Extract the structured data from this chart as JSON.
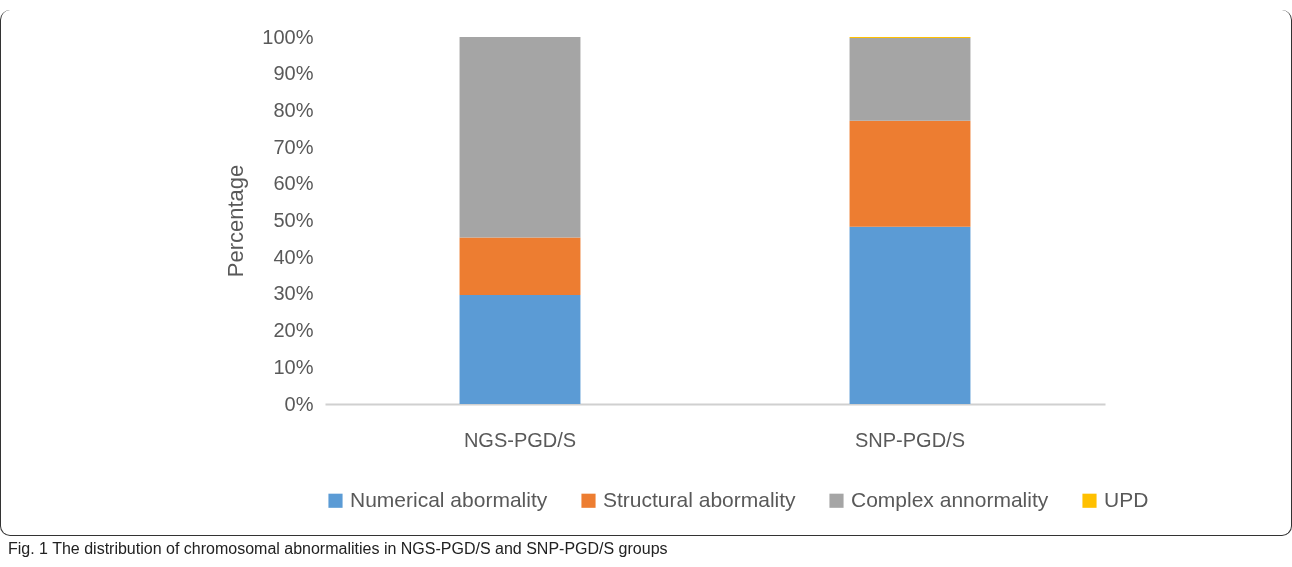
{
  "chart_data": {
    "type": "bar",
    "stacked": true,
    "ylabel": "Percentage",
    "categories": [
      "NGS-PGD/S",
      "SNP-PGD/S"
    ],
    "series": [
      {
        "name": "Numerical abormality",
        "color": "#5b9bd5",
        "values": [
          29.7,
          48.3
        ]
      },
      {
        "name": "Structural abormality",
        "color": "#ed7d31",
        "values": [
          15.7,
          28.9
        ]
      },
      {
        "name": "Complex annormality",
        "color": "#a5a5a5",
        "values": [
          54.6,
          22.5
        ]
      },
      {
        "name": "UPD",
        "color": "#ffc000",
        "values": [
          0,
          0.3
        ]
      }
    ],
    "ylim": [
      0,
      100
    ],
    "yticks": [
      {
        "value": 0,
        "label": "0%"
      },
      {
        "value": 10,
        "label": "10%"
      },
      {
        "value": 20,
        "label": "20%"
      },
      {
        "value": 30,
        "label": "30%"
      },
      {
        "value": 40,
        "label": "40%"
      },
      {
        "value": 50,
        "label": "50%"
      },
      {
        "value": 60,
        "label": "60%"
      },
      {
        "value": 70,
        "label": "70%"
      },
      {
        "value": 80,
        "label": "80%"
      },
      {
        "value": 90,
        "label": "90%"
      },
      {
        "value": 100,
        "label": "100%"
      }
    ],
    "grid": false,
    "legend": "bottom",
    "annotations": [
      "Fig. 1 The distribution of chromosomal abnormalities in NGS-PGD/S and SNP-PGD/S groups"
    ]
  }
}
